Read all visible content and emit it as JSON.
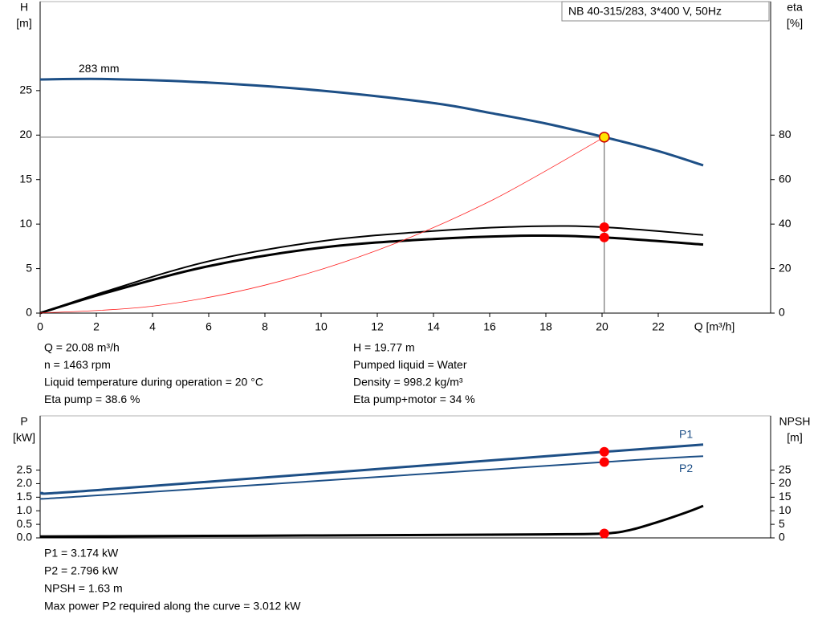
{
  "chart_data": [
    {
      "type": "line",
      "title": "NB 40-315/283, 3*400 V, 50Hz",
      "y_label": [
        "H",
        "[m]"
      ],
      "y2_label": [
        "eta",
        "[%]"
      ],
      "x_label": "Q [m³/h]",
      "xlim": [
        0,
        26
      ],
      "xticks": [
        0,
        2,
        4,
        6,
        8,
        10,
        12,
        14,
        16,
        18,
        20,
        22
      ],
      "ylim": [
        0,
        35
      ],
      "yticks": [
        0,
        5,
        10,
        15,
        20,
        25
      ],
      "y2lim": [
        0,
        140
      ],
      "y2ticks": [
        0,
        20,
        40,
        60,
        80
      ],
      "annotation": "283 mm",
      "series": [
        {
          "color": "#1d4f86",
          "width": 3,
          "x": [
            0,
            2.4,
            6,
            10,
            14,
            16,
            18,
            20.08,
            22,
            23.6
          ],
          "values": [
            26.25,
            26.3,
            25.9,
            25.0,
            23.6,
            22.5,
            21.3,
            19.77,
            18.2,
            16.6
          ]
        },
        {
          "color": "#000000",
          "width": 2,
          "axis": "y2",
          "x": [
            0,
            2.4,
            6,
            10,
            14,
            17.5,
            20.08,
            23.6
          ],
          "values": [
            0,
            10,
            23.3,
            32.3,
            36.9,
            39,
            38.6,
            35.1
          ]
        },
        {
          "color": "#000000",
          "width": 3,
          "axis": "y2",
          "x": [
            0,
            2.4,
            6,
            10,
            14,
            17.5,
            20.08,
            23.6
          ],
          "values": [
            0,
            9.3,
            21.1,
            29.4,
            33.3,
            34.8,
            34,
            30.8
          ]
        },
        {
          "color": "#ff2020",
          "width": 0.8,
          "x": [
            0,
            4,
            8,
            12,
            16,
            20.08
          ],
          "values": [
            0,
            0.78,
            3.14,
            7.06,
            12.55,
            19.77
          ]
        }
      ],
      "markers": [
        {
          "x": 20.08,
          "y": 19.77,
          "color": "#ffe400",
          "guides": true
        },
        {
          "x": 20.08,
          "y": 38.6,
          "axis": "y2",
          "color": "#ff0000"
        },
        {
          "x": 20.08,
          "y": 34,
          "axis": "y2",
          "color": "#ff0000"
        }
      ],
      "notes": [
        "Q = 20.08 m³/h",
        "n = 1463 rpm",
        "Liquid temperature during operation = 20 °C",
        "Eta pump = 38.6 %",
        "H = 19.77 m",
        "Pumped liquid = Water",
        "Density = 998.2 kg/m³",
        "Eta pump+motor = 34 %"
      ]
    },
    {
      "type": "line",
      "y_label": [
        "P",
        "[kW]"
      ],
      "y2_label": [
        "NPSH",
        "[m]"
      ],
      "xlim": [
        0,
        26
      ],
      "ylim": [
        0,
        4.5
      ],
      "yticks": [
        {
          "value": 0,
          "label": "0.0"
        },
        0.5,
        {
          "value": 1,
          "label": "1.0"
        },
        1.5,
        {
          "value": 2,
          "label": "2.0"
        },
        2.5
      ],
      "y2lim": [
        0,
        45
      ],
      "y2ticks": [
        0,
        5,
        10,
        15,
        20,
        25
      ],
      "series": [
        {
          "name": "P1",
          "color": "#1d4f86",
          "width": 3,
          "x": [
            0,
            2.4,
            20.08,
            23.6
          ],
          "values": [
            1.65,
            1.79,
            3.174,
            3.44
          ]
        },
        {
          "name": "P2",
          "color": "#1d4f86",
          "width": 2,
          "x": [
            0,
            2.4,
            20.08,
            23.6
          ],
          "values": [
            1.44,
            1.59,
            2.796,
            3.012
          ]
        },
        {
          "color": "#000000",
          "width": 3,
          "axis": "y2",
          "x": [
            0,
            2.4,
            10,
            18,
            20.08,
            21,
            22,
            23,
            23.6
          ],
          "values": [
            0.5,
            0.6,
            0.9,
            1.3,
            1.63,
            2.9,
            5.9,
            9.4,
            11.8
          ]
        }
      ],
      "markers": [
        {
          "x": 20.08,
          "y": 3.174,
          "color": "#ff0000"
        },
        {
          "x": 20.08,
          "y": 2.796,
          "color": "#ff0000"
        },
        {
          "x": 20.08,
          "y": 1.63,
          "axis": "y2",
          "color": "#ff0000"
        }
      ],
      "notes": [
        "P1 = 3.174 kW",
        "P2 = 2.796 kW",
        "NPSH = 1.63 m",
        "Max power P2 required along the curve = 3.012 kW"
      ]
    }
  ]
}
